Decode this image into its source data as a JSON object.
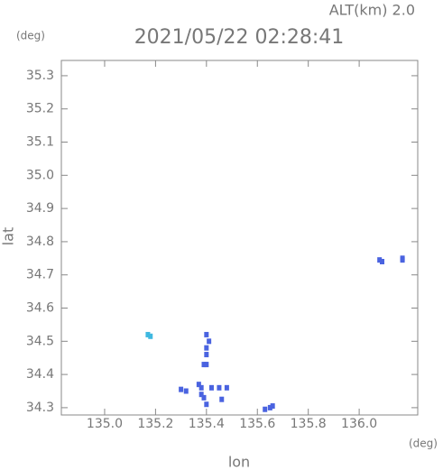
{
  "chart_data": {
    "type": "scatter",
    "title": "2021/05/22 02:28:41",
    "subtitle": "ALT(km) 2.0",
    "y_unit": "(deg)",
    "x_unit": "(deg)",
    "xlabel": "lon",
    "ylabel": "lat",
    "xlim": [
      134.83,
      136.23
    ],
    "ylim": [
      34.278,
      35.346
    ],
    "xticks": [
      {
        "value": 135.0,
        "label": "135.0"
      },
      135.2,
      135.4,
      135.6,
      135.8,
      {
        "value": 136.0,
        "label": "136.0"
      }
    ],
    "yticks": [
      34.3,
      34.4,
      34.5,
      34.6,
      34.7,
      34.8,
      34.9,
      {
        "value": 35.0,
        "label": "35.0"
      },
      35.1,
      35.2,
      35.3
    ],
    "grid": false,
    "series": [
      {
        "color": "#4a63e0",
        "x": [
          135.4,
          135.41,
          135.4,
          135.4,
          135.39,
          135.4,
          135.37,
          135.38,
          135.42,
          135.45,
          135.48,
          135.3,
          135.32,
          135.38,
          135.39,
          135.4,
          135.46,
          135.63,
          135.65,
          135.66,
          136.08,
          136.09,
          136.17,
          136.17
        ],
        "values": [
          34.52,
          34.5,
          34.48,
          34.46,
          34.43,
          34.43,
          34.37,
          34.36,
          34.36,
          34.36,
          34.36,
          34.355,
          34.35,
          34.34,
          34.33,
          34.31,
          34.325,
          34.295,
          34.3,
          34.305,
          34.745,
          34.74,
          34.75,
          34.745
        ]
      },
      {
        "color": "#3fb8e0",
        "x": [
          135.17,
          135.18
        ],
        "values": [
          34.52,
          34.515
        ]
      }
    ]
  }
}
